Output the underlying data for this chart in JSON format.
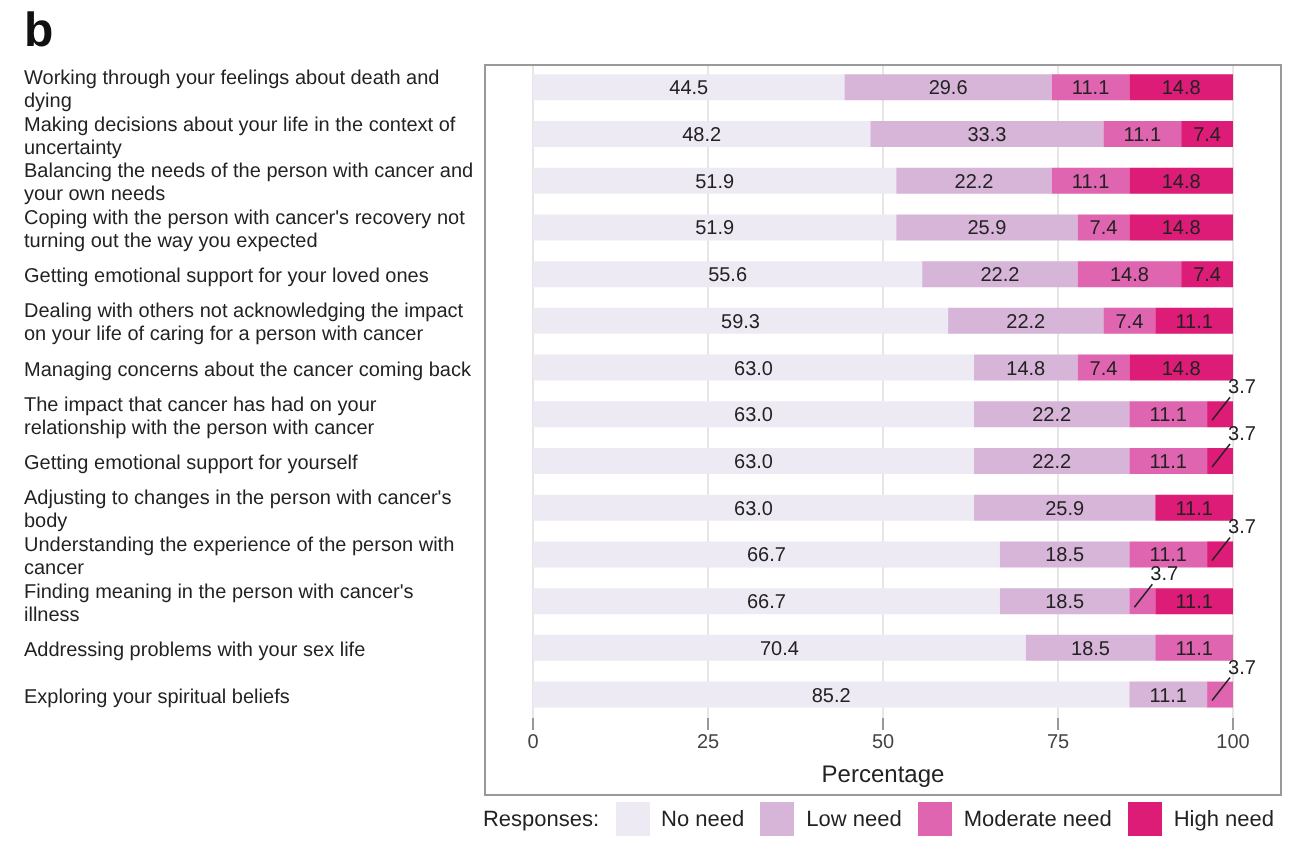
{
  "chart_data": {
    "type": "bar",
    "title": "b",
    "orientation": "horizontal",
    "stacked": true,
    "xlabel": "Percentage",
    "legend_title": "Responses:",
    "legend": "bottom",
    "grid": "x",
    "xlim": [
      -7,
      107
    ],
    "xticks": [
      0,
      25,
      50,
      75,
      100
    ],
    "categories": [
      "Working through your feelings about death and dying",
      "Making decisions about your life in the context of uncertainty",
      "Balancing the needs of the person with cancer and your own needs",
      "Coping with the person with cancer's recovery not turning out the way you expected",
      "Getting emotional support for your loved ones",
      "Dealing with others not acknowledging the impact on your life of caring for a person with cancer",
      "Managing concerns about the cancer coming back",
      "The impact that cancer has had on your relationship with the person with cancer",
      "Getting emotional support for yourself",
      "Adjusting to changes in the person with cancer's body",
      "Understanding the experience of the person with cancer",
      "Finding meaning in the person with cancer's illness",
      "Addressing problems with your sex life",
      "Exploring your spiritual beliefs"
    ],
    "series": [
      {
        "name": "No need",
        "color": "#eeeaf4",
        "values": [
          44.5,
          48.2,
          51.9,
          51.9,
          55.6,
          59.3,
          63.0,
          63.0,
          63.0,
          63.0,
          66.7,
          66.7,
          70.4,
          85.2
        ],
        "value_labels": [
          "44.5",
          "48.2",
          "51.9",
          "51.9",
          "55.6",
          "59.3",
          "63.0",
          "63.0",
          "63.0",
          "63.0",
          "66.7",
          "66.7",
          "70.4",
          "85.2"
        ]
      },
      {
        "name": "Low need",
        "color": "#d7b5d8",
        "values": [
          29.6,
          33.3,
          22.2,
          25.9,
          22.2,
          22.2,
          14.8,
          22.2,
          22.2,
          25.9,
          18.5,
          18.5,
          18.5,
          11.1
        ],
        "value_labels": [
          "29.6",
          "33.3",
          "22.2",
          "25.9",
          "22.2",
          "22.2",
          "14.8",
          "22.2",
          "22.2",
          "25.9",
          "18.5",
          "18.5",
          "18.5",
          "11.1"
        ]
      },
      {
        "name": "Moderate need",
        "color": "#df65b0",
        "values": [
          11.1,
          11.1,
          11.1,
          7.4,
          14.8,
          7.4,
          7.4,
          11.1,
          11.1,
          null,
          11.1,
          3.7,
          11.1,
          3.7
        ],
        "value_labels": [
          "11.1",
          "11.1",
          "11.1",
          "7.4",
          "14.8",
          "7.4",
          "7.4",
          "11.1",
          "11.1",
          null,
          "11.1",
          "3.7",
          "11.1",
          "3.7"
        ]
      },
      {
        "name": "High need",
        "color": "#dd1c77",
        "values": [
          14.8,
          7.4,
          14.8,
          14.8,
          7.4,
          11.1,
          14.8,
          3.7,
          3.7,
          11.1,
          3.7,
          11.1,
          null,
          null
        ],
        "value_labels": [
          "14.8",
          "7.4",
          "14.8",
          "14.8",
          "7.4",
          "11.1",
          "14.8",
          "3.7",
          "3.7",
          "11.1",
          "3.7",
          "11.1",
          null,
          null
        ]
      }
    ]
  }
}
